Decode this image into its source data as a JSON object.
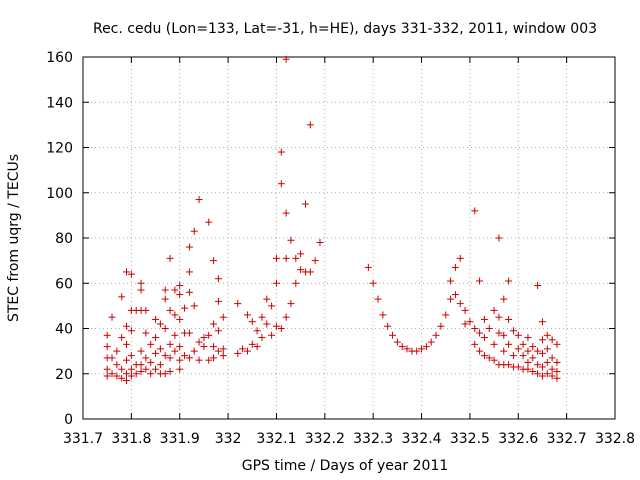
{
  "chart_data": {
    "type": "scatter",
    "title": "Rec. cedu (Lon=133, Lat=-31, h=HE), days 331-332, 2011, window 003",
    "xlabel": "GPS time / Days of year 2011",
    "ylabel": "STEC from uqrg / TECUs",
    "xlim": [
      331.7,
      332.8
    ],
    "ylim": [
      0,
      160
    ],
    "x_ticks": [
      "331.7",
      "331.8",
      "331.9",
      "332",
      "332.1",
      "332.2",
      "332.3",
      "332.4",
      "332.5",
      "332.6",
      "332.7",
      "332.8"
    ],
    "y_ticks": [
      "0",
      "20",
      "40",
      "60",
      "80",
      "100",
      "120",
      "140",
      "160"
    ],
    "grid": true,
    "marker": "plus",
    "color": "#cc0000",
    "series": [
      {
        "points": [
          [
            331.75,
            37
          ],
          [
            331.75,
            32
          ],
          [
            331.75,
            27
          ],
          [
            331.75,
            22
          ],
          [
            331.75,
            19
          ],
          [
            331.76,
            27
          ],
          [
            331.76,
            20
          ],
          [
            331.76,
            45
          ],
          [
            331.77,
            30
          ],
          [
            331.77,
            24
          ],
          [
            331.77,
            19
          ],
          [
            331.78,
            54
          ],
          [
            331.78,
            36
          ],
          [
            331.78,
            22
          ],
          [
            331.78,
            18
          ],
          [
            331.79,
            65
          ],
          [
            331.79,
            41
          ],
          [
            331.79,
            33
          ],
          [
            331.79,
            26
          ],
          [
            331.79,
            20
          ],
          [
            331.79,
            17
          ],
          [
            331.8,
            64
          ],
          [
            331.8,
            48
          ],
          [
            331.8,
            39
          ],
          [
            331.8,
            28
          ],
          [
            331.8,
            22
          ],
          [
            331.8,
            19
          ],
          [
            331.81,
            48
          ],
          [
            331.81,
            24
          ],
          [
            331.81,
            20
          ],
          [
            331.82,
            60
          ],
          [
            331.82,
            57
          ],
          [
            331.82,
            48
          ],
          [
            331.82,
            30
          ],
          [
            331.82,
            24
          ],
          [
            331.82,
            21
          ],
          [
            331.83,
            48
          ],
          [
            331.83,
            38
          ],
          [
            331.83,
            27
          ],
          [
            331.83,
            22
          ],
          [
            331.84,
            33
          ],
          [
            331.84,
            25
          ],
          [
            331.84,
            20
          ],
          [
            331.85,
            44
          ],
          [
            331.85,
            36
          ],
          [
            331.85,
            29
          ],
          [
            331.85,
            22
          ],
          [
            331.86,
            42
          ],
          [
            331.86,
            31
          ],
          [
            331.86,
            24
          ],
          [
            331.86,
            20
          ],
          [
            331.87,
            57
          ],
          [
            331.87,
            53
          ],
          [
            331.87,
            40
          ],
          [
            331.87,
            28
          ],
          [
            331.87,
            20
          ],
          [
            331.88,
            71
          ],
          [
            331.88,
            48
          ],
          [
            331.88,
            33
          ],
          [
            331.88,
            27
          ],
          [
            331.88,
            21
          ],
          [
            331.89,
            57
          ],
          [
            331.89,
            46
          ],
          [
            331.89,
            37
          ],
          [
            331.89,
            30
          ],
          [
            331.9,
            59
          ],
          [
            331.9,
            55
          ],
          [
            331.9,
            44
          ],
          [
            331.9,
            32
          ],
          [
            331.9,
            26
          ],
          [
            331.9,
            22
          ],
          [
            331.91,
            49
          ],
          [
            331.91,
            38
          ],
          [
            331.91,
            28
          ],
          [
            331.92,
            76
          ],
          [
            331.92,
            65
          ],
          [
            331.92,
            56
          ],
          [
            331.92,
            38
          ],
          [
            331.92,
            27
          ],
          [
            331.93,
            83
          ],
          [
            331.93,
            50
          ],
          [
            331.93,
            30
          ],
          [
            331.94,
            97
          ],
          [
            331.94,
            34
          ],
          [
            331.94,
            26
          ],
          [
            331.95,
            36
          ],
          [
            331.95,
            32
          ],
          [
            331.96,
            87
          ],
          [
            331.96,
            37
          ],
          [
            331.96,
            26
          ],
          [
            331.97,
            70
          ],
          [
            331.97,
            42
          ],
          [
            331.97,
            32
          ],
          [
            331.97,
            27
          ],
          [
            331.98,
            62
          ],
          [
            331.98,
            52
          ],
          [
            331.98,
            39
          ],
          [
            331.98,
            30
          ],
          [
            331.99,
            45
          ],
          [
            331.99,
            31
          ],
          [
            331.99,
            28
          ],
          [
            332.02,
            51
          ],
          [
            332.02,
            29
          ],
          [
            332.03,
            31
          ],
          [
            332.04,
            46
          ],
          [
            332.04,
            30
          ],
          [
            332.05,
            43
          ],
          [
            332.05,
            33
          ],
          [
            332.06,
            39
          ],
          [
            332.06,
            32
          ],
          [
            332.07,
            45
          ],
          [
            332.07,
            36
          ],
          [
            332.08,
            53
          ],
          [
            332.08,
            42
          ],
          [
            332.09,
            50
          ],
          [
            332.09,
            37
          ],
          [
            332.1,
            71
          ],
          [
            332.1,
            60
          ],
          [
            332.1,
            41
          ],
          [
            332.11,
            118
          ],
          [
            332.11,
            104
          ],
          [
            332.11,
            40
          ],
          [
            332.12,
            159
          ],
          [
            332.12,
            91
          ],
          [
            332.12,
            71
          ],
          [
            332.12,
            45
          ],
          [
            332.13,
            79
          ],
          [
            332.13,
            51
          ],
          [
            332.14,
            71
          ],
          [
            332.14,
            60
          ],
          [
            332.15,
            73
          ],
          [
            332.15,
            66
          ],
          [
            332.16,
            95
          ],
          [
            332.16,
            65
          ],
          [
            332.17,
            130
          ],
          [
            332.17,
            65
          ],
          [
            332.18,
            70
          ],
          [
            332.19,
            78
          ],
          [
            332.29,
            67
          ],
          [
            332.3,
            60
          ],
          [
            332.31,
            53
          ],
          [
            332.32,
            46
          ],
          [
            332.33,
            41
          ],
          [
            332.34,
            37
          ],
          [
            332.35,
            34
          ],
          [
            332.36,
            32
          ],
          [
            332.37,
            31
          ],
          [
            332.38,
            30
          ],
          [
            332.39,
            30
          ],
          [
            332.4,
            31
          ],
          [
            332.41,
            32
          ],
          [
            332.42,
            34
          ],
          [
            332.43,
            37
          ],
          [
            332.44,
            41
          ],
          [
            332.45,
            46
          ],
          [
            332.46,
            61
          ],
          [
            332.46,
            53
          ],
          [
            332.47,
            67
          ],
          [
            332.47,
            55
          ],
          [
            332.48,
            71
          ],
          [
            332.48,
            51
          ],
          [
            332.49,
            48
          ],
          [
            332.49,
            42
          ],
          [
            332.5,
            43
          ],
          [
            332.51,
            92
          ],
          [
            332.51,
            40
          ],
          [
            332.51,
            33
          ],
          [
            332.52,
            61
          ],
          [
            332.52,
            38
          ],
          [
            332.52,
            30
          ],
          [
            332.53,
            44
          ],
          [
            332.53,
            36
          ],
          [
            332.53,
            28
          ],
          [
            332.54,
            40
          ],
          [
            332.54,
            27
          ],
          [
            332.55,
            48
          ],
          [
            332.55,
            33
          ],
          [
            332.55,
            26
          ],
          [
            332.56,
            80
          ],
          [
            332.56,
            45
          ],
          [
            332.56,
            38
          ],
          [
            332.56,
            24
          ],
          [
            332.57,
            53
          ],
          [
            332.57,
            37
          ],
          [
            332.57,
            30
          ],
          [
            332.57,
            24
          ],
          [
            332.58,
            61
          ],
          [
            332.58,
            44
          ],
          [
            332.58,
            33
          ],
          [
            332.58,
            24
          ],
          [
            332.59,
            39
          ],
          [
            332.59,
            28
          ],
          [
            332.59,
            23
          ],
          [
            332.6,
            37
          ],
          [
            332.6,
            31
          ],
          [
            332.6,
            23
          ],
          [
            332.61,
            33
          ],
          [
            332.61,
            28
          ],
          [
            332.61,
            22
          ],
          [
            332.62,
            36
          ],
          [
            332.62,
            30
          ],
          [
            332.62,
            25
          ],
          [
            332.62,
            22
          ],
          [
            332.63,
            32
          ],
          [
            332.63,
            27
          ],
          [
            332.63,
            21
          ],
          [
            332.64,
            59
          ],
          [
            332.64,
            30
          ],
          [
            332.64,
            24
          ],
          [
            332.64,
            20
          ],
          [
            332.65,
            43
          ],
          [
            332.65,
            35
          ],
          [
            332.65,
            29
          ],
          [
            332.65,
            23
          ],
          [
            332.65,
            19
          ],
          [
            332.66,
            37
          ],
          [
            332.66,
            31
          ],
          [
            332.66,
            25
          ],
          [
            332.66,
            20
          ],
          [
            332.67,
            35
          ],
          [
            332.67,
            27
          ],
          [
            332.67,
            22
          ],
          [
            332.67,
            19
          ],
          [
            332.68,
            33
          ],
          [
            332.68,
            25
          ],
          [
            332.68,
            21
          ],
          [
            332.68,
            18
          ]
        ]
      }
    ]
  }
}
